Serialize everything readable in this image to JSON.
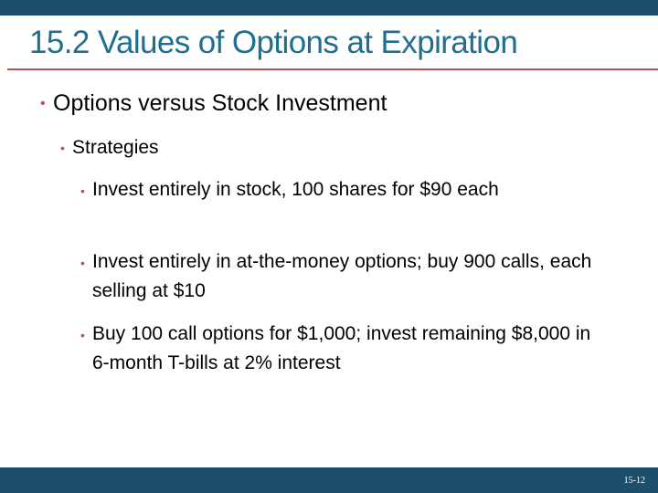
{
  "slide": {
    "title": "15.2 Values of Options at Expiration",
    "bullets": {
      "level1": "Options versus Stock Investment",
      "level2": "Strategies",
      "level3": [
        "Invest entirely in stock, 100 shares for $90 each",
        "Invest entirely in at-the-money options; buy 900 calls, each selling at $10",
        "Buy 100 call options for $1,000; invest remaining $8,000 in 6-month T-bills at 2% interest"
      ]
    },
    "bullet_glyph": "•"
  },
  "footer": {
    "page_number": "15-12"
  },
  "colors": {
    "bar": "#1d4e6b",
    "title": "#1f6f91",
    "accent": "#c0504d",
    "text": "#000000"
  }
}
